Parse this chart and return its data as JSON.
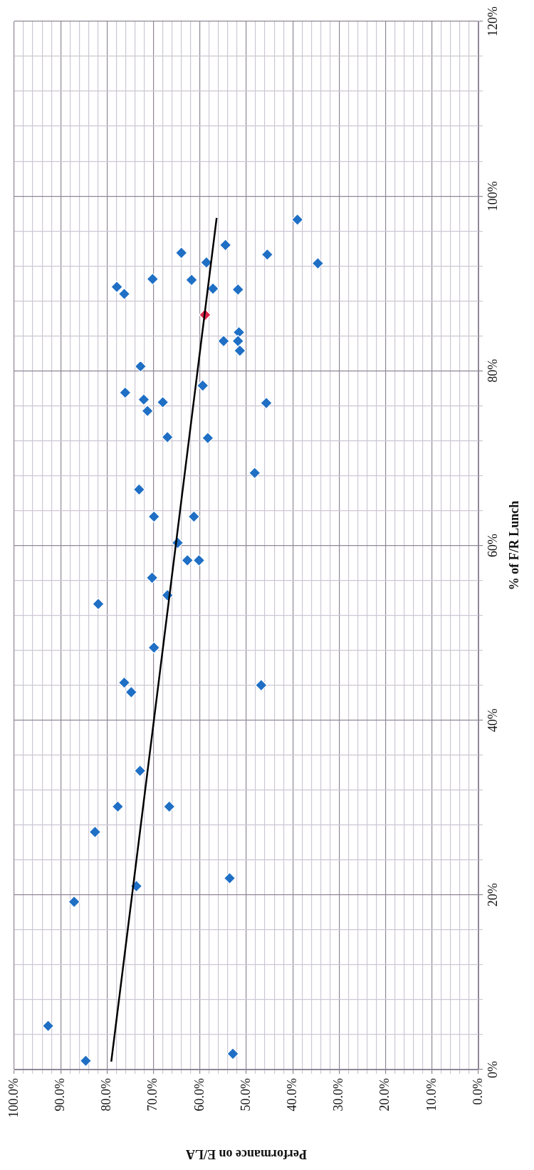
{
  "chart_data": {
    "type": "scatter",
    "xlabel": "Performance on E/LA",
    "ylabel": "% of F/R Lunch",
    "xlim": [
      100,
      0
    ],
    "ylim": [
      0,
      120
    ],
    "yticks": [
      {
        "value": 0,
        "label": "0%"
      },
      {
        "value": 4,
        "label": null
      },
      {
        "value": 8,
        "label": null
      },
      {
        "value": 12,
        "label": null
      },
      {
        "value": 16,
        "label": null
      },
      {
        "value": 20,
        "label": "20%"
      },
      {
        "value": 24,
        "label": null
      },
      {
        "value": 28,
        "label": null
      },
      {
        "value": 32,
        "label": null
      },
      {
        "value": 36,
        "label": null
      },
      {
        "value": 40,
        "label": "40%"
      },
      {
        "value": 44,
        "label": null
      },
      {
        "value": 48,
        "label": null
      },
      {
        "value": 52,
        "label": null
      },
      {
        "value": 56,
        "label": null
      },
      {
        "value": 60,
        "label": "60%"
      },
      {
        "value": 64,
        "label": null
      },
      {
        "value": 68,
        "label": null
      },
      {
        "value": 72,
        "label": null
      },
      {
        "value": 76,
        "label": null
      },
      {
        "value": 80,
        "label": "80%"
      },
      {
        "value": 84,
        "label": null
      },
      {
        "value": 88,
        "label": null
      },
      {
        "value": 92,
        "label": null
      },
      {
        "value": 96,
        "label": null
      },
      {
        "value": 100,
        "label": "100%"
      },
      {
        "value": 104,
        "label": null
      },
      {
        "value": 108,
        "label": null
      },
      {
        "value": 112,
        "label": null
      },
      {
        "value": 116,
        "label": null
      },
      {
        "value": 120,
        "label": "120%"
      }
    ],
    "xticks": [
      {
        "value": 100,
        "label": "100.0%"
      },
      {
        "value": 98,
        "label": null
      },
      {
        "value": 96,
        "label": null
      },
      {
        "value": 94,
        "label": null
      },
      {
        "value": 92,
        "label": null
      },
      {
        "value": 90,
        "label": "90.0%"
      },
      {
        "value": 88,
        "label": null
      },
      {
        "value": 86,
        "label": null
      },
      {
        "value": 84,
        "label": null
      },
      {
        "value": 82,
        "label": null
      },
      {
        "value": 80,
        "label": "80.0%"
      },
      {
        "value": 78,
        "label": null
      },
      {
        "value": 76,
        "label": null
      },
      {
        "value": 74,
        "label": null
      },
      {
        "value": 72,
        "label": null
      },
      {
        "value": 70,
        "label": "70.0%"
      },
      {
        "value": 68,
        "label": null
      },
      {
        "value": 66,
        "label": null
      },
      {
        "value": 64,
        "label": null
      },
      {
        "value": 62,
        "label": null
      },
      {
        "value": 60,
        "label": "60.0%"
      },
      {
        "value": 58,
        "label": null
      },
      {
        "value": 56,
        "label": null
      },
      {
        "value": 54,
        "label": null
      },
      {
        "value": 52,
        "label": null
      },
      {
        "value": 50,
        "label": "50.0%"
      },
      {
        "value": 48,
        "label": null
      },
      {
        "value": 46,
        "label": null
      },
      {
        "value": 44,
        "label": null
      },
      {
        "value": 42,
        "label": null
      },
      {
        "value": 40,
        "label": "40.0%"
      },
      {
        "value": 38,
        "label": null
      },
      {
        "value": 36,
        "label": null
      },
      {
        "value": 34,
        "label": null
      },
      {
        "value": 32,
        "label": null
      },
      {
        "value": 30,
        "label": "30.0%"
      },
      {
        "value": 28,
        "label": null
      },
      {
        "value": 26,
        "label": null
      },
      {
        "value": 24,
        "label": null
      },
      {
        "value": 22,
        "label": null
      },
      {
        "value": 20,
        "label": "20.0%"
      },
      {
        "value": 18,
        "label": null
      },
      {
        "value": 16,
        "label": null
      },
      {
        "value": 14,
        "label": null
      },
      {
        "value": 12,
        "label": null
      },
      {
        "value": 10,
        "label": "10.0%"
      },
      {
        "value": 8,
        "label": null
      },
      {
        "value": 6,
        "label": null
      },
      {
        "value": 4,
        "label": null
      },
      {
        "value": 2,
        "label": null
      },
      {
        "value": 0,
        "label": "0.0%"
      }
    ],
    "grid": true,
    "marker": "diamond",
    "series": [
      {
        "color": "#1f6fc5",
        "x": [
          77.7,
          66.6,
          82.6,
          73.7,
          53.6,
          87.1,
          92.7,
          84.6,
          52.9,
          73.1,
          69.9,
          61.3,
          64.8,
          62.7,
          60.2,
          70.3,
          67.0,
          81.9,
          69.9,
          76.3,
          74.8,
          46.8,
          72.9,
          39.0,
          54.5,
          64.0,
          45.5,
          58.6,
          34.6,
          70.2,
          61.8,
          77.9,
          76.3,
          57.2,
          51.8,
          51.6,
          54.9,
          51.8,
          51.4,
          72.8,
          76.1,
          59.4,
          72.1,
          68.0,
          71.3,
          45.7,
          67.0,
          58.3,
          48.2
        ],
        "values": [
          30.1,
          30.1,
          27.2,
          21.0,
          21.9,
          19.2,
          5.0,
          1.0,
          1.8,
          66.4,
          63.3,
          63.3,
          60.3,
          58.3,
          58.3,
          56.3,
          54.3,
          53.3,
          48.3,
          44.3,
          43.2,
          44.0,
          34.2,
          97.3,
          94.4,
          93.5,
          93.3,
          92.4,
          92.3,
          90.5,
          90.4,
          89.6,
          88.8,
          89.4,
          89.3,
          84.4,
          83.4,
          83.4,
          82.3,
          80.5,
          77.5,
          78.3,
          76.7,
          76.4,
          75.4,
          76.3,
          72.4,
          72.3,
          68.3
        ]
      },
      {
        "color": "#e0244a",
        "x": [
          58.9
        ],
        "values": [
          86.4
        ]
      },
      {
        "type": "line",
        "marker": "none",
        "color": "#000000",
        "x": [
          79.1,
          56.4
        ],
        "values": [
          0.9,
          97.5
        ]
      }
    ]
  }
}
